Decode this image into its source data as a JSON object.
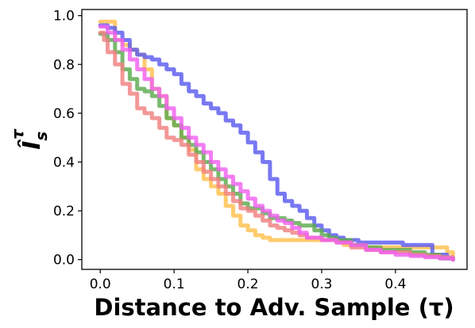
{
  "chart_data": {
    "type": "line",
    "title": "",
    "xlabel": "Distance to Adv. Sample (τ)",
    "ylabel": "Î",
    "ylabel_sub": "s",
    "ylabel_sup": "τ",
    "xlim": [
      -0.025,
      0.497
    ],
    "ylim": [
      -0.04,
      1.025
    ],
    "xticks": [
      0.0,
      0.1,
      0.2,
      0.3,
      0.4
    ],
    "yticks": [
      0.0,
      0.2,
      0.4,
      0.6,
      0.8,
      1.0
    ],
    "xtick_labels": [
      "0.0",
      "0.1",
      "0.2",
      "0.3",
      "0.4"
    ],
    "ytick_labels": [
      "0.0",
      "0.2",
      "0.4",
      "0.6",
      "0.8",
      "1.0"
    ],
    "grid": false,
    "legend": "none",
    "series": [
      {
        "color": "#FFC04D",
        "points": [
          [
            0.0,
            0.975
          ],
          [
            0.01,
            0.975
          ],
          [
            0.018,
            0.975
          ],
          [
            0.02,
            0.9
          ],
          [
            0.03,
            0.88
          ],
          [
            0.04,
            0.86
          ],
          [
            0.05,
            0.84
          ],
          [
            0.06,
            0.78
          ],
          [
            0.07,
            0.7
          ],
          [
            0.08,
            0.67
          ],
          [
            0.09,
            0.58
          ],
          [
            0.1,
            0.55
          ],
          [
            0.11,
            0.5
          ],
          [
            0.12,
            0.45
          ],
          [
            0.13,
            0.37
          ],
          [
            0.14,
            0.33
          ],
          [
            0.15,
            0.3
          ],
          [
            0.16,
            0.27
          ],
          [
            0.17,
            0.22
          ],
          [
            0.18,
            0.18
          ],
          [
            0.19,
            0.14
          ],
          [
            0.2,
            0.12
          ],
          [
            0.21,
            0.1
          ],
          [
            0.22,
            0.09
          ],
          [
            0.23,
            0.08
          ],
          [
            0.25,
            0.08
          ],
          [
            0.28,
            0.08
          ],
          [
            0.3,
            0.08
          ],
          [
            0.33,
            0.06
          ],
          [
            0.36,
            0.05
          ],
          [
            0.4,
            0.05
          ],
          [
            0.42,
            0.05
          ],
          [
            0.45,
            0.05
          ],
          [
            0.47,
            0.03
          ],
          [
            0.478,
            0.02
          ]
        ]
      },
      {
        "color": "#5A5AF0",
        "points": [
          [
            0.0,
            0.96
          ],
          [
            0.01,
            0.95
          ],
          [
            0.02,
            0.93
          ],
          [
            0.03,
            0.9
          ],
          [
            0.04,
            0.86
          ],
          [
            0.05,
            0.84
          ],
          [
            0.06,
            0.83
          ],
          [
            0.07,
            0.82
          ],
          [
            0.08,
            0.8
          ],
          [
            0.09,
            0.78
          ],
          [
            0.1,
            0.76
          ],
          [
            0.11,
            0.72
          ],
          [
            0.12,
            0.69
          ],
          [
            0.13,
            0.67
          ],
          [
            0.14,
            0.64
          ],
          [
            0.15,
            0.62
          ],
          [
            0.16,
            0.6
          ],
          [
            0.17,
            0.57
          ],
          [
            0.18,
            0.55
          ],
          [
            0.19,
            0.52
          ],
          [
            0.2,
            0.48
          ],
          [
            0.21,
            0.44
          ],
          [
            0.22,
            0.4
          ],
          [
            0.23,
            0.33
          ],
          [
            0.24,
            0.27
          ],
          [
            0.25,
            0.24
          ],
          [
            0.26,
            0.22
          ],
          [
            0.27,
            0.2
          ],
          [
            0.28,
            0.17
          ],
          [
            0.29,
            0.14
          ],
          [
            0.3,
            0.12
          ],
          [
            0.31,
            0.1
          ],
          [
            0.32,
            0.09
          ],
          [
            0.33,
            0.08
          ],
          [
            0.35,
            0.07
          ],
          [
            0.37,
            0.07
          ],
          [
            0.39,
            0.07
          ],
          [
            0.41,
            0.06
          ],
          [
            0.43,
            0.06
          ],
          [
            0.45,
            0.02
          ],
          [
            0.47,
            0.005
          ],
          [
            0.478,
            0.0
          ]
        ]
      },
      {
        "color": "#5CAA4E",
        "points": [
          [
            0.0,
            0.925
          ],
          [
            0.01,
            0.9
          ],
          [
            0.02,
            0.85
          ],
          [
            0.03,
            0.78
          ],
          [
            0.04,
            0.74
          ],
          [
            0.05,
            0.7
          ],
          [
            0.06,
            0.69
          ],
          [
            0.07,
            0.67
          ],
          [
            0.08,
            0.63
          ],
          [
            0.09,
            0.58
          ],
          [
            0.1,
            0.55
          ],
          [
            0.11,
            0.5
          ],
          [
            0.12,
            0.47
          ],
          [
            0.13,
            0.44
          ],
          [
            0.14,
            0.4
          ],
          [
            0.15,
            0.37
          ],
          [
            0.16,
            0.33
          ],
          [
            0.17,
            0.3
          ],
          [
            0.18,
            0.27
          ],
          [
            0.19,
            0.23
          ],
          [
            0.2,
            0.21
          ],
          [
            0.21,
            0.21
          ],
          [
            0.22,
            0.19
          ],
          [
            0.23,
            0.17
          ],
          [
            0.24,
            0.17
          ],
          [
            0.25,
            0.16
          ],
          [
            0.26,
            0.15
          ],
          [
            0.27,
            0.14
          ],
          [
            0.28,
            0.14
          ],
          [
            0.29,
            0.12
          ],
          [
            0.3,
            0.1
          ],
          [
            0.31,
            0.09
          ],
          [
            0.32,
            0.08
          ],
          [
            0.34,
            0.06
          ],
          [
            0.36,
            0.05
          ],
          [
            0.38,
            0.04
          ],
          [
            0.4,
            0.04
          ],
          [
            0.42,
            0.03
          ],
          [
            0.44,
            0.02
          ],
          [
            0.46,
            0.005
          ],
          [
            0.478,
            0.0
          ]
        ]
      },
      {
        "color": "#F08080",
        "points": [
          [
            0.0,
            0.93
          ],
          [
            0.005,
            0.9
          ],
          [
            0.01,
            0.85
          ],
          [
            0.02,
            0.8
          ],
          [
            0.03,
            0.72
          ],
          [
            0.04,
            0.68
          ],
          [
            0.05,
            0.62
          ],
          [
            0.06,
            0.6
          ],
          [
            0.07,
            0.58
          ],
          [
            0.08,
            0.54
          ],
          [
            0.09,
            0.5
          ],
          [
            0.1,
            0.49
          ],
          [
            0.11,
            0.47
          ],
          [
            0.12,
            0.43
          ],
          [
            0.13,
            0.4
          ],
          [
            0.14,
            0.36
          ],
          [
            0.15,
            0.33
          ],
          [
            0.16,
            0.3
          ],
          [
            0.17,
            0.27
          ],
          [
            0.18,
            0.24
          ],
          [
            0.19,
            0.21
          ],
          [
            0.2,
            0.2
          ],
          [
            0.21,
            0.18
          ],
          [
            0.22,
            0.16
          ],
          [
            0.23,
            0.14
          ],
          [
            0.24,
            0.13
          ],
          [
            0.25,
            0.12
          ],
          [
            0.26,
            0.11
          ],
          [
            0.27,
            0.1
          ],
          [
            0.28,
            0.09
          ],
          [
            0.3,
            0.08
          ],
          [
            0.32,
            0.07
          ],
          [
            0.34,
            0.05
          ],
          [
            0.36,
            0.04
          ],
          [
            0.38,
            0.03
          ],
          [
            0.4,
            0.03
          ],
          [
            0.42,
            0.02
          ],
          [
            0.44,
            0.015
          ],
          [
            0.46,
            0.01
          ],
          [
            0.478,
            0.0
          ]
        ]
      },
      {
        "color": "#F060F0",
        "points": [
          [
            0.0,
            0.955
          ],
          [
            0.01,
            0.93
          ],
          [
            0.02,
            0.9
          ],
          [
            0.03,
            0.86
          ],
          [
            0.04,
            0.82
          ],
          [
            0.05,
            0.78
          ],
          [
            0.06,
            0.74
          ],
          [
            0.07,
            0.7
          ],
          [
            0.08,
            0.67
          ],
          [
            0.09,
            0.62
          ],
          [
            0.1,
            0.58
          ],
          [
            0.11,
            0.54
          ],
          [
            0.12,
            0.5
          ],
          [
            0.13,
            0.47
          ],
          [
            0.14,
            0.44
          ],
          [
            0.15,
            0.4
          ],
          [
            0.16,
            0.37
          ],
          [
            0.17,
            0.34
          ],
          [
            0.18,
            0.31
          ],
          [
            0.19,
            0.28
          ],
          [
            0.2,
            0.25
          ],
          [
            0.21,
            0.22
          ],
          [
            0.22,
            0.2
          ],
          [
            0.23,
            0.18
          ],
          [
            0.24,
            0.16
          ],
          [
            0.25,
            0.15
          ],
          [
            0.26,
            0.13
          ],
          [
            0.27,
            0.11
          ],
          [
            0.28,
            0.09
          ],
          [
            0.3,
            0.08
          ],
          [
            0.32,
            0.07
          ],
          [
            0.34,
            0.06
          ],
          [
            0.36,
            0.04
          ],
          [
            0.38,
            0.03
          ],
          [
            0.4,
            0.02
          ],
          [
            0.42,
            0.015
          ],
          [
            0.44,
            0.01
          ],
          [
            0.46,
            0.005
          ],
          [
            0.478,
            0.0
          ]
        ]
      }
    ]
  }
}
